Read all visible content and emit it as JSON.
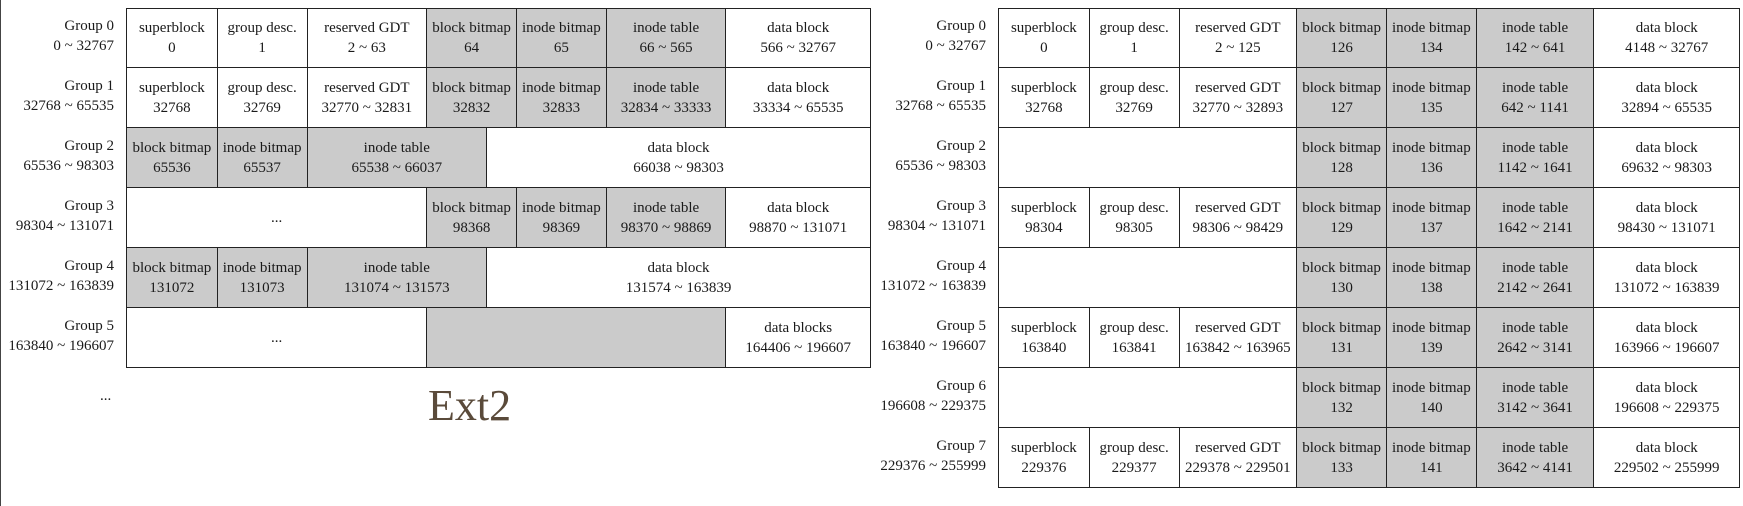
{
  "diagrams": [
    {
      "id": "ext2",
      "caption": "Ext2",
      "trailing_label": "...",
      "rows": [
        {
          "group": "Group 0",
          "range": "0 ~ 32767",
          "cells": [
            {
              "name": "superblock",
              "value": "0",
              "gray": false
            },
            {
              "name": "group desc.",
              "value": "1",
              "gray": false
            },
            {
              "name": "reserved GDT",
              "value": "2 ~ 63",
              "gray": false
            },
            {
              "name": "block bitmap",
              "value": "64",
              "gray": true
            },
            {
              "name": "inode bitmap",
              "value": "65",
              "gray": true
            },
            {
              "name": "inode table",
              "value": "66 ~ 565",
              "gray": true
            },
            {
              "name": "data block",
              "value": "566 ~ 32767",
              "gray": false
            }
          ]
        },
        {
          "group": "Group 1",
          "range": "32768 ~ 65535",
          "cells": [
            {
              "name": "superblock",
              "value": "32768",
              "gray": false
            },
            {
              "name": "group desc.",
              "value": "32769",
              "gray": false
            },
            {
              "name": "reserved GDT",
              "value": "32770 ~ 32831",
              "gray": false
            },
            {
              "name": "block bitmap",
              "value": "32832",
              "gray": true
            },
            {
              "name": "inode bitmap",
              "value": "32833",
              "gray": true
            },
            {
              "name": "inode table",
              "value": "32834 ~ 33333",
              "gray": true
            },
            {
              "name": "data block",
              "value": "33334 ~ 65535",
              "gray": false
            }
          ]
        },
        {
          "group": "Group 2",
          "range": "65536 ~ 98303",
          "cells": [
            {
              "name": "block bitmap",
              "value": "65536",
              "gray": true
            },
            {
              "name": "inode bitmap",
              "value": "65537",
              "gray": true
            },
            {
              "name": "inode table",
              "value": "65538 ~ 66037",
              "gray": true
            },
            {
              "name": "data block",
              "value": "66038 ~ 98303",
              "gray": false
            }
          ]
        },
        {
          "group": "Group 3",
          "range": "98304 ~ 131071",
          "cells": [
            {
              "name": "...",
              "value": "",
              "gray": false
            },
            {
              "name": "block bitmap",
              "value": "98368",
              "gray": true
            },
            {
              "name": "inode bitmap",
              "value": "98369",
              "gray": true
            },
            {
              "name": "inode table",
              "value": "98370 ~ 98869",
              "gray": true
            },
            {
              "name": "data block",
              "value": "98870 ~ 131071",
              "gray": false
            }
          ]
        },
        {
          "group": "Group 4",
          "range": "131072 ~ 163839",
          "cells": [
            {
              "name": "block bitmap",
              "value": "131072",
              "gray": true
            },
            {
              "name": "inode bitmap",
              "value": "131073",
              "gray": true
            },
            {
              "name": "inode table",
              "value": "131074 ~ 131573",
              "gray": true
            },
            {
              "name": "data block",
              "value": "131574 ~ 163839",
              "gray": false
            }
          ]
        },
        {
          "group": "Group 5",
          "range": "163840 ~ 196607",
          "cells": [
            {
              "name": "...",
              "value": "",
              "gray": false
            },
            {
              "name": "",
              "value": "",
              "gray": true
            },
            {
              "name": "data blocks",
              "value": "164406 ~ 196607",
              "gray": false
            }
          ]
        }
      ]
    },
    {
      "id": "ext4",
      "rows": [
        {
          "group": "Group 0",
          "range": "0 ~ 32767",
          "cells": [
            {
              "name": "superblock",
              "value": "0",
              "gray": false
            },
            {
              "name": "group desc.",
              "value": "1",
              "gray": false
            },
            {
              "name": "reserved GDT",
              "value": "2 ~ 125",
              "gray": false
            },
            {
              "name": "block bitmap",
              "value": "126",
              "gray": true
            },
            {
              "name": "inode bitmap",
              "value": "134",
              "gray": true
            },
            {
              "name": "inode table",
              "value": "142 ~ 641",
              "gray": true
            },
            {
              "name": "data block",
              "value": "4148 ~ 32767",
              "gray": false
            }
          ]
        },
        {
          "group": "Group 1",
          "range": "32768 ~ 65535",
          "cells": [
            {
              "name": "superblock",
              "value": "32768",
              "gray": false
            },
            {
              "name": "group desc.",
              "value": "32769",
              "gray": false
            },
            {
              "name": "reserved GDT",
              "value": "32770 ~ 32893",
              "gray": false
            },
            {
              "name": "block bitmap",
              "value": "127",
              "gray": true
            },
            {
              "name": "inode bitmap",
              "value": "135",
              "gray": true
            },
            {
              "name": "inode table",
              "value": "642 ~ 1141",
              "gray": true
            },
            {
              "name": "data block",
              "value": "32894 ~ 65535",
              "gray": false
            }
          ]
        },
        {
          "group": "Group 2",
          "range": "65536 ~ 98303",
          "cells": [
            {
              "name": "",
              "value": "",
              "gray": false,
              "blank": true
            },
            {
              "name": "block bitmap",
              "value": "128",
              "gray": true
            },
            {
              "name": "inode bitmap",
              "value": "136",
              "gray": true
            },
            {
              "name": "inode table",
              "value": "1142 ~ 1641",
              "gray": true
            },
            {
              "name": "data block",
              "value": "69632 ~ 98303",
              "gray": false
            }
          ]
        },
        {
          "group": "Group 3",
          "range": "98304 ~ 131071",
          "cells": [
            {
              "name": "superblock",
              "value": "98304",
              "gray": false
            },
            {
              "name": "group desc.",
              "value": "98305",
              "gray": false
            },
            {
              "name": "reserved GDT",
              "value": "98306 ~ 98429",
              "gray": false
            },
            {
              "name": "block bitmap",
              "value": "129",
              "gray": true
            },
            {
              "name": "inode bitmap",
              "value": "137",
              "gray": true
            },
            {
              "name": "inode table",
              "value": "1642 ~ 2141",
              "gray": true
            },
            {
              "name": "data block",
              "value": "98430 ~ 131071",
              "gray": false
            }
          ]
        },
        {
          "group": "Group 4",
          "range": "131072 ~ 163839",
          "cells": [
            {
              "name": "",
              "value": "",
              "gray": false,
              "blank": true
            },
            {
              "name": "block bitmap",
              "value": "130",
              "gray": true
            },
            {
              "name": "inode bitmap",
              "value": "138",
              "gray": true
            },
            {
              "name": "inode table",
              "value": "2142 ~ 2641",
              "gray": true
            },
            {
              "name": "data block",
              "value": "131072 ~ 163839",
              "gray": false
            }
          ]
        },
        {
          "group": "Group 5",
          "range": "163840 ~ 196607",
          "cells": [
            {
              "name": "superblock",
              "value": "163840",
              "gray": false
            },
            {
              "name": "group desc.",
              "value": "163841",
              "gray": false
            },
            {
              "name": "reserved GDT",
              "value": "163842 ~ 163965",
              "gray": false
            },
            {
              "name": "block bitmap",
              "value": "131",
              "gray": true
            },
            {
              "name": "inode bitmap",
              "value": "139",
              "gray": true
            },
            {
              "name": "inode table",
              "value": "2642 ~ 3141",
              "gray": true
            },
            {
              "name": "data block",
              "value": "163966 ~ 196607",
              "gray": false
            }
          ]
        },
        {
          "group": "Group 6",
          "range": "196608 ~ 229375",
          "cells": [
            {
              "name": "",
              "value": "",
              "gray": false,
              "blank": true
            },
            {
              "name": "block bitmap",
              "value": "132",
              "gray": true
            },
            {
              "name": "inode bitmap",
              "value": "140",
              "gray": true
            },
            {
              "name": "inode table",
              "value": "3142 ~ 3641",
              "gray": true
            },
            {
              "name": "data block",
              "value": "196608 ~ 229375",
              "gray": false
            }
          ]
        },
        {
          "group": "Group 7",
          "range": "229376 ~ 255999",
          "cells": [
            {
              "name": "superblock",
              "value": "229376",
              "gray": false
            },
            {
              "name": "group desc.",
              "value": "229377",
              "gray": false
            },
            {
              "name": "reserved GDT",
              "value": "229378 ~ 229501",
              "gray": false
            },
            {
              "name": "block bitmap",
              "value": "133",
              "gray": true
            },
            {
              "name": "inode bitmap",
              "value": "141",
              "gray": true
            },
            {
              "name": "inode table",
              "value": "3642 ~ 4141",
              "gray": true
            },
            {
              "name": "data block",
              "value": "229502 ~ 255999",
              "gray": false
            }
          ]
        }
      ]
    }
  ]
}
